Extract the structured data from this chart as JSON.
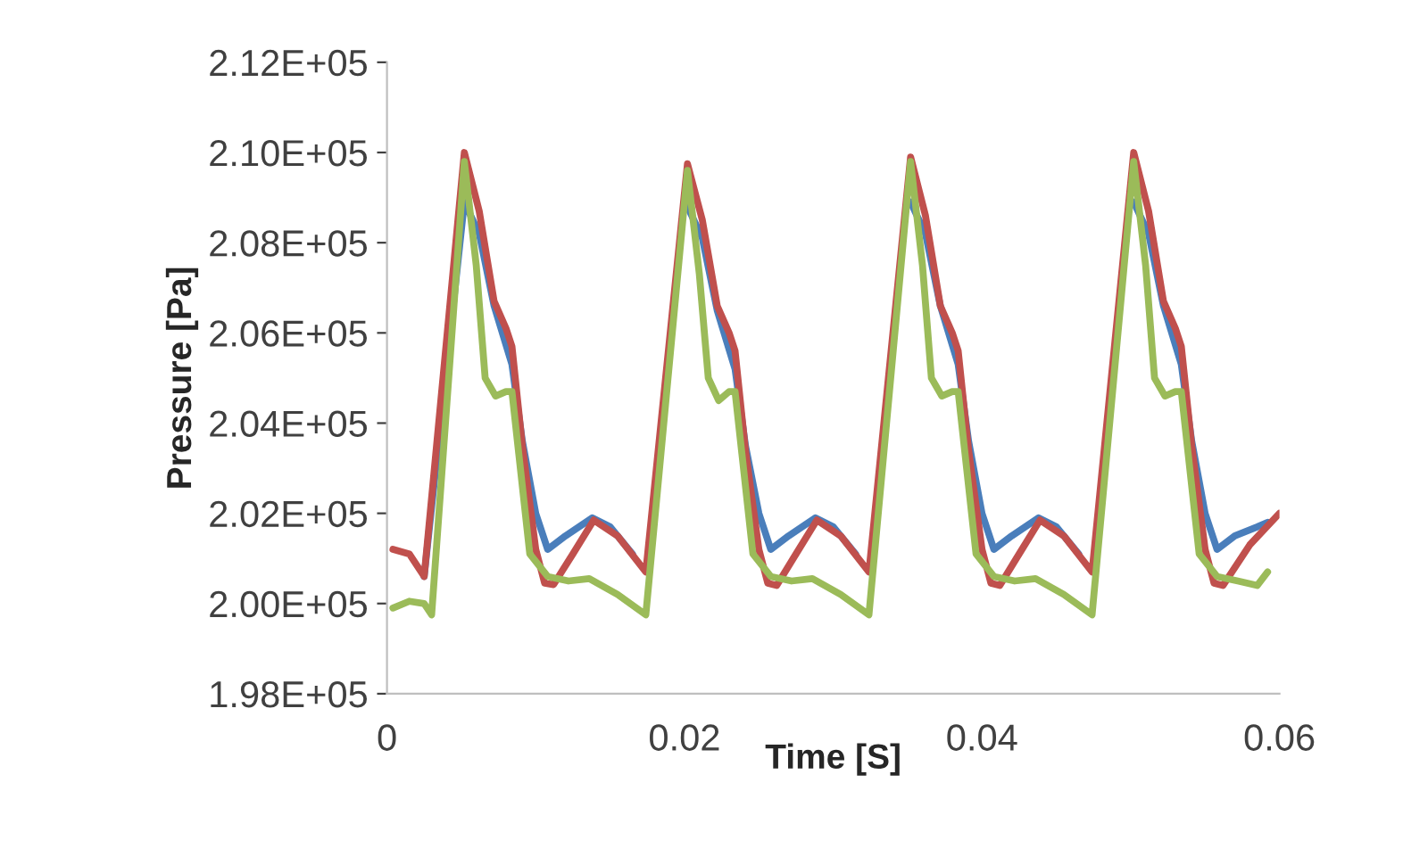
{
  "chart_data": {
    "type": "line",
    "xlabel": "Time [S]",
    "ylabel": "Pressure [Pa]",
    "xlim": [
      0,
      0.06
    ],
    "xticks": [
      0,
      0.02,
      0.04,
      0.06
    ],
    "ylim": [
      198000,
      212000
    ],
    "yticks": [
      {
        "value": 198000,
        "label": "1.98E+05"
      },
      {
        "value": 200000,
        "label": "2.00E+05"
      },
      {
        "value": 202000,
        "label": "2.02E+05"
      },
      {
        "value": 204000,
        "label": "2.04E+05"
      },
      {
        "value": 206000,
        "label": "2.06E+05"
      },
      {
        "value": 208000,
        "label": "2.08E+05"
      },
      {
        "value": 210000,
        "label": "2.10E+05"
      },
      {
        "value": 212000,
        "label": "2.12E+05"
      }
    ],
    "grid": false,
    "legend": false,
    "marker": "none",
    "line_style": "solid",
    "series": [
      {
        "color": "#4a7ebb",
        "x": [
          0.0025,
          0.0052,
          0.0062,
          0.0072,
          0.0084,
          0.0091,
          0.01,
          0.0108,
          0.012,
          0.0138,
          0.015,
          0.0165,
          0.0174,
          0.0202,
          0.0212,
          0.0222,
          0.0234,
          0.0241,
          0.025,
          0.0258,
          0.027,
          0.0288,
          0.03,
          0.0315,
          0.0324,
          0.0352,
          0.0362,
          0.0372,
          0.0384,
          0.0391,
          0.04,
          0.0408,
          0.042,
          0.0438,
          0.045,
          0.0465,
          0.0474,
          0.0502,
          0.0512,
          0.0522,
          0.0534,
          0.0541,
          0.055,
          0.0558,
          0.057,
          0.0585,
          0.0592
        ],
        "values": [
          200600,
          208900,
          208200,
          206600,
          205300,
          203600,
          202000,
          201200,
          201500,
          201900,
          201700,
          201100,
          null,
          208800,
          208100,
          206500,
          205200,
          203500,
          202000,
          201200,
          201500,
          201900,
          201700,
          201100,
          null,
          208900,
          208200,
          206600,
          205300,
          203600,
          202000,
          201200,
          201500,
          201900,
          201700,
          201100,
          null,
          208900,
          208200,
          206600,
          205300,
          203600,
          202000,
          201200,
          201500,
          201700,
          201800
        ]
      },
      {
        "color": "#c0504d",
        "x": [
          0.0004,
          0.0015,
          0.0025,
          0.0052,
          0.0062,
          0.0072,
          0.008,
          0.0084,
          0.0091,
          0.01,
          0.0106,
          0.0112,
          0.0125,
          0.0139,
          0.0155,
          0.0174,
          0.0202,
          0.0212,
          0.0222,
          0.023,
          0.0234,
          0.0241,
          0.025,
          0.0256,
          0.0262,
          0.0275,
          0.0289,
          0.0305,
          0.0324,
          0.0352,
          0.0362,
          0.0372,
          0.038,
          0.0384,
          0.0391,
          0.04,
          0.0406,
          0.0412,
          0.0425,
          0.0439,
          0.0455,
          0.0474,
          0.0502,
          0.0512,
          0.0522,
          0.053,
          0.0534,
          0.0541,
          0.055,
          0.0556,
          0.0562,
          0.058,
          0.06
        ],
        "values": [
          201200,
          201100,
          200600,
          210000,
          208700,
          206700,
          206100,
          205700,
          203500,
          201200,
          200450,
          200420,
          201100,
          201850,
          201500,
          200700,
          209750,
          208500,
          206600,
          206000,
          205600,
          203400,
          201200,
          200450,
          200400,
          201100,
          201850,
          201500,
          200700,
          209900,
          208600,
          206600,
          206000,
          205600,
          203400,
          201200,
          200450,
          200400,
          201100,
          201850,
          201500,
          200700,
          210000,
          208700,
          206700,
          206100,
          205700,
          203500,
          201200,
          200450,
          200400,
          201300,
          202000
        ]
      },
      {
        "color": "#9bbb59",
        "x": [
          0.0004,
          0.0015,
          0.0025,
          0.003,
          0.0052,
          0.006,
          0.0066,
          0.0073,
          0.008,
          0.0084,
          0.0096,
          0.0108,
          0.0122,
          0.0136,
          0.0155,
          0.0174,
          0.0202,
          0.021,
          0.0216,
          0.0223,
          0.023,
          0.0234,
          0.0246,
          0.0258,
          0.0272,
          0.0286,
          0.0305,
          0.0324,
          0.0352,
          0.036,
          0.0366,
          0.0373,
          0.038,
          0.0384,
          0.0396,
          0.0408,
          0.0422,
          0.0436,
          0.0455,
          0.0474,
          0.0502,
          0.051,
          0.0516,
          0.0523,
          0.053,
          0.0534,
          0.0546,
          0.0558,
          0.0572,
          0.0585,
          0.0592
        ],
        "values": [
          199900,
          200050,
          200000,
          199750,
          209800,
          207500,
          205000,
          204600,
          204700,
          204700,
          201100,
          200600,
          200500,
          200550,
          200200,
          199750,
          209600,
          207300,
          205000,
          204500,
          204700,
          204700,
          201100,
          200600,
          200500,
          200550,
          200200,
          199750,
          209800,
          207500,
          205000,
          204600,
          204700,
          204700,
          201100,
          200600,
          200500,
          200550,
          200200,
          199750,
          209800,
          207500,
          205000,
          204600,
          204700,
          204700,
          201100,
          200600,
          200500,
          200400,
          200700
        ]
      }
    ]
  }
}
